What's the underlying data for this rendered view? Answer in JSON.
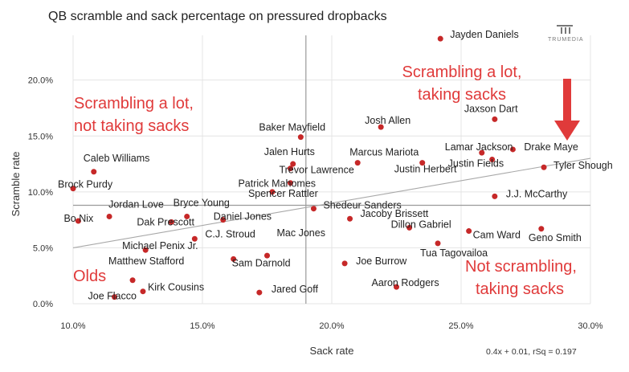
{
  "chart_data": {
    "type": "scatter",
    "title": "QB scramble and sack percentage on pressured dropbacks",
    "xlabel": "Sack rate",
    "ylabel": "Scramble rate",
    "xlim": [
      0.1,
      0.3
    ],
    "ylim": [
      0.0,
      0.24
    ],
    "x_ticks": [
      0.1,
      0.15,
      0.2,
      0.25,
      0.3
    ],
    "x_tick_labels": [
      "10.0%",
      "15.0%",
      "20.0%",
      "25.0%",
      "30.0%"
    ],
    "y_ticks": [
      0.0,
      0.05,
      0.1,
      0.15,
      0.2
    ],
    "y_tick_labels": [
      "0.0%",
      "5.0%",
      "10.0%",
      "15.0%",
      "20.0%"
    ],
    "reference_lines": {
      "x": 0.19,
      "y": 0.088
    },
    "trendline": {
      "slope": 0.4,
      "intercept": 0.01,
      "label": "0.4x + 0.01, rSq = 0.197"
    },
    "marker_color": "#c62828",
    "points": [
      {
        "name": "Jayden Daniels",
        "x": 0.242,
        "y": 0.237
      },
      {
        "name": "Jaxson Dart",
        "x": 0.263,
        "y": 0.165
      },
      {
        "name": "Baker Mayfield",
        "x": 0.188,
        "y": 0.149
      },
      {
        "name": "Josh Allen",
        "x": 0.219,
        "y": 0.158
      },
      {
        "name": "Lamar Jackson",
        "x": 0.258,
        "y": 0.135
      },
      {
        "name": "Drake Maye",
        "x": 0.27,
        "y": 0.138
      },
      {
        "name": "Justin Fields",
        "x": 0.262,
        "y": 0.129
      },
      {
        "name": "Tyler Shough",
        "x": 0.282,
        "y": 0.122
      },
      {
        "name": "Justin Herbert",
        "x": 0.235,
        "y": 0.126
      },
      {
        "name": "Marcus Mariota",
        "x": 0.21,
        "y": 0.126
      },
      {
        "name": "Jalen Hurts",
        "x": 0.185,
        "y": 0.125
      },
      {
        "name": "Trevor Lawrence",
        "x": 0.184,
        "y": 0.121
      },
      {
        "name": "Patrick Mahomes",
        "x": 0.184,
        "y": 0.108
      },
      {
        "name": "Spencer Rattler",
        "x": 0.177,
        "y": 0.1
      },
      {
        "name": "Caleb Williams",
        "x": 0.108,
        "y": 0.118
      },
      {
        "name": "Brock Purdy",
        "x": 0.1,
        "y": 0.103
      },
      {
        "name": "J.J. McCarthy",
        "x": 0.263,
        "y": 0.096
      },
      {
        "name": "Shedeur Sanders",
        "x": 0.193,
        "y": 0.085
      },
      {
        "name": "Jordan Love",
        "x": 0.114,
        "y": 0.078
      },
      {
        "name": "Bo Nix",
        "x": 0.102,
        "y": 0.074
      },
      {
        "name": "Bryce Young",
        "x": 0.144,
        "y": 0.078
      },
      {
        "name": "Dak Prescott",
        "x": 0.138,
        "y": 0.073
      },
      {
        "name": "Daniel Jones",
        "x": 0.158,
        "y": 0.075
      },
      {
        "name": "Jacoby Brissett",
        "x": 0.207,
        "y": 0.076
      },
      {
        "name": "Dillon Gabriel",
        "x": 0.23,
        "y": 0.068
      },
      {
        "name": "Geno Smith",
        "x": 0.281,
        "y": 0.067
      },
      {
        "name": "Cam Ward",
        "x": 0.253,
        "y": 0.065
      },
      {
        "name": "C.J. Stroud",
        "x": 0.147,
        "y": 0.058
      },
      {
        "name": "Tua Tagovailoa",
        "x": 0.241,
        "y": 0.054
      },
      {
        "name": "Michael Penix Jr.",
        "x": 0.128,
        "y": 0.048
      },
      {
        "name": "Mac Jones",
        "x": 0.175,
        "y": 0.043
      },
      {
        "name": "Sam Darnold",
        "x": 0.162,
        "y": 0.04
      },
      {
        "name": "Joe Burrow",
        "x": 0.205,
        "y": 0.036
      },
      {
        "name": "Matthew Stafford",
        "x": 0.123,
        "y": 0.021
      },
      {
        "name": "Aaron Rodgers",
        "x": 0.225,
        "y": 0.015
      },
      {
        "name": "Kirk Cousins",
        "x": 0.127,
        "y": 0.011
      },
      {
        "name": "Jared Goff",
        "x": 0.172,
        "y": 0.01
      },
      {
        "name": "Joe Flacco",
        "x": 0.116,
        "y": 0.006
      }
    ],
    "annotations": [
      {
        "lines": [
          "Scrambling a lot,",
          "not taking sacks"
        ],
        "quadrant": "top-left"
      },
      {
        "lines": [
          "Scrambling a lot,",
          "taking sacks"
        ],
        "quadrant": "top-right"
      },
      {
        "lines": [
          "Not scrambling,",
          "taking sacks"
        ],
        "quadrant": "bottom-right"
      },
      {
        "lines": [
          "Olds"
        ],
        "quadrant": "bottom-left"
      }
    ],
    "arrow_target": "Drake Maye",
    "annotation_color": "#e03a3a",
    "logo_text": "TRUMEDIA"
  }
}
